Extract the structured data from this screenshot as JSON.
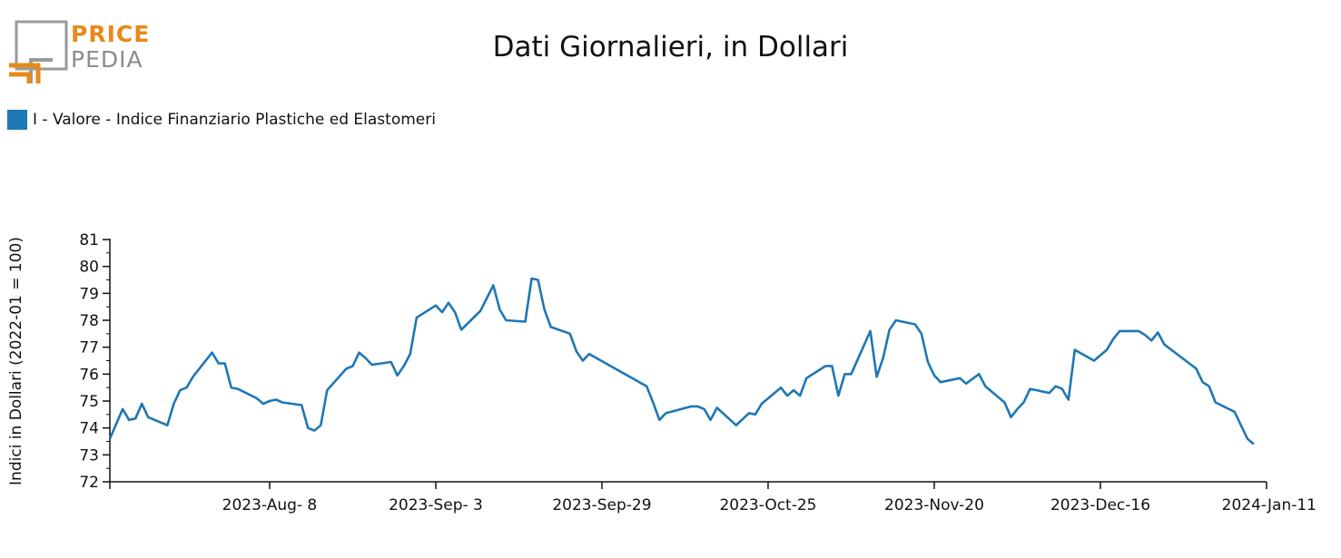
{
  "logo": {
    "word_top": "PRICE",
    "word_bottom": "PEDIA"
  },
  "colors": {
    "series": "#1f77b4",
    "logo_orange": "#e8891a",
    "logo_gray": "#8c8c8c"
  },
  "chart_data": {
    "type": "line",
    "title": "Dati Giornalieri, in Dollari",
    "ylabel": "Indici in Dollari (2022-01 = 100)",
    "xlabel": "",
    "legend_position": "top-left",
    "grid": false,
    "ylim": [
      72,
      81
    ],
    "xlim": [
      "2023-07-14",
      "2024-01-11"
    ],
    "y_ticks": [
      72,
      73,
      74,
      75,
      76,
      77,
      78,
      79,
      80,
      81
    ],
    "x_ticks": [
      {
        "date": "2023-08-08",
        "label": "2023-Aug- 8"
      },
      {
        "date": "2023-09-03",
        "label": "2023-Sep- 3"
      },
      {
        "date": "2023-09-29",
        "label": "2023-Sep-29"
      },
      {
        "date": "2023-10-25",
        "label": "2023-Oct-25"
      },
      {
        "date": "2023-11-20",
        "label": "2023-Nov-20"
      },
      {
        "date": "2023-12-16",
        "label": "2023-Dec-16"
      },
      {
        "date": "2024-01-11",
        "label": "2024-Jan-11"
      }
    ],
    "series": [
      {
        "name": "I - Valore - Indice Finanziario Plastiche ed Elastomeri",
        "color": "#1f77b4",
        "points": [
          [
            "2023-07-14",
            73.6
          ],
          [
            "2023-07-16",
            74.7
          ],
          [
            "2023-07-17",
            74.3
          ],
          [
            "2023-07-18",
            74.35
          ],
          [
            "2023-07-19",
            74.9
          ],
          [
            "2023-07-20",
            74.4
          ],
          [
            "2023-07-23",
            74.1
          ],
          [
            "2023-07-24",
            74.9
          ],
          [
            "2023-07-25",
            75.4
          ],
          [
            "2023-07-26",
            75.5
          ],
          [
            "2023-07-27",
            75.9
          ],
          [
            "2023-07-30",
            76.8
          ],
          [
            "2023-07-31",
            76.4
          ],
          [
            "2023-08-01",
            76.4
          ],
          [
            "2023-08-02",
            75.5
          ],
          [
            "2023-08-03",
            75.45
          ],
          [
            "2023-08-06",
            75.1
          ],
          [
            "2023-08-07",
            74.9
          ],
          [
            "2023-08-08",
            75.0
          ],
          [
            "2023-08-09",
            75.05
          ],
          [
            "2023-08-10",
            74.95
          ],
          [
            "2023-08-13",
            74.85
          ],
          [
            "2023-08-14",
            74.0
          ],
          [
            "2023-08-15",
            73.9
          ],
          [
            "2023-08-16",
            74.1
          ],
          [
            "2023-08-17",
            75.4
          ],
          [
            "2023-08-20",
            76.2
          ],
          [
            "2023-08-21",
            76.3
          ],
          [
            "2023-08-22",
            76.8
          ],
          [
            "2023-08-23",
            76.6
          ],
          [
            "2023-08-24",
            76.35
          ],
          [
            "2023-08-27",
            76.45
          ],
          [
            "2023-08-28",
            75.95
          ],
          [
            "2023-08-29",
            76.3
          ],
          [
            "2023-08-30",
            76.75
          ],
          [
            "2023-08-31",
            78.1
          ],
          [
            "2023-09-03",
            78.55
          ],
          [
            "2023-09-04",
            78.3
          ],
          [
            "2023-09-05",
            78.65
          ],
          [
            "2023-09-06",
            78.3
          ],
          [
            "2023-09-07",
            77.65
          ],
          [
            "2023-09-10",
            78.35
          ],
          [
            "2023-09-12",
            79.3
          ],
          [
            "2023-09-13",
            78.4
          ],
          [
            "2023-09-14",
            78.0
          ],
          [
            "2023-09-17",
            77.95
          ],
          [
            "2023-09-18",
            79.55
          ],
          [
            "2023-09-19",
            79.5
          ],
          [
            "2023-09-20",
            78.4
          ],
          [
            "2023-09-21",
            77.75
          ],
          [
            "2023-09-24",
            77.5
          ],
          [
            "2023-09-25",
            76.85
          ],
          [
            "2023-09-26",
            76.5
          ],
          [
            "2023-09-27",
            76.75
          ],
          [
            "2023-10-06",
            75.55
          ],
          [
            "2023-10-07",
            74.95
          ],
          [
            "2023-10-08",
            74.3
          ],
          [
            "2023-10-09",
            74.55
          ],
          [
            "2023-10-13",
            74.8
          ],
          [
            "2023-10-14",
            74.8
          ],
          [
            "2023-10-15",
            74.7
          ],
          [
            "2023-10-16",
            74.3
          ],
          [
            "2023-10-17",
            74.75
          ],
          [
            "2023-10-20",
            74.1
          ],
          [
            "2023-10-22",
            74.55
          ],
          [
            "2023-10-23",
            74.5
          ],
          [
            "2023-10-24",
            74.9
          ],
          [
            "2023-10-27",
            75.5
          ],
          [
            "2023-10-28",
            75.2
          ],
          [
            "2023-10-29",
            75.4
          ],
          [
            "2023-10-30",
            75.2
          ],
          [
            "2023-10-31",
            75.85
          ],
          [
            "2023-11-03",
            76.3
          ],
          [
            "2023-11-04",
            76.3
          ],
          [
            "2023-11-05",
            75.2
          ],
          [
            "2023-11-06",
            76.0
          ],
          [
            "2023-11-07",
            76.0
          ],
          [
            "2023-11-10",
            77.6
          ],
          [
            "2023-11-11",
            75.9
          ],
          [
            "2023-11-12",
            76.6
          ],
          [
            "2023-11-13",
            77.65
          ],
          [
            "2023-11-14",
            78.0
          ],
          [
            "2023-11-17",
            77.85
          ],
          [
            "2023-11-18",
            77.5
          ],
          [
            "2023-11-19",
            76.45
          ],
          [
            "2023-11-20",
            75.95
          ],
          [
            "2023-11-21",
            75.7
          ],
          [
            "2023-11-24",
            75.85
          ],
          [
            "2023-11-25",
            75.65
          ],
          [
            "2023-11-27",
            76.0
          ],
          [
            "2023-11-28",
            75.55
          ],
          [
            "2023-12-01",
            74.95
          ],
          [
            "2023-12-02",
            74.4
          ],
          [
            "2023-12-03",
            74.7
          ],
          [
            "2023-12-04",
            74.95
          ],
          [
            "2023-12-05",
            75.45
          ],
          [
            "2023-12-08",
            75.3
          ],
          [
            "2023-12-09",
            75.55
          ],
          [
            "2023-12-10",
            75.45
          ],
          [
            "2023-12-11",
            75.05
          ],
          [
            "2023-12-12",
            76.9
          ],
          [
            "2023-12-15",
            76.5
          ],
          [
            "2023-12-17",
            76.9
          ],
          [
            "2023-12-18",
            77.3
          ],
          [
            "2023-12-19",
            77.6
          ],
          [
            "2023-12-22",
            77.6
          ],
          [
            "2023-12-23",
            77.45
          ],
          [
            "2023-12-24",
            77.25
          ],
          [
            "2023-12-25",
            77.55
          ],
          [
            "2023-12-26",
            77.1
          ],
          [
            "2023-12-31",
            76.2
          ],
          [
            "2024-01-01",
            75.7
          ],
          [
            "2024-01-02",
            75.55
          ],
          [
            "2024-01-03",
            74.95
          ],
          [
            "2024-01-06",
            74.6
          ],
          [
            "2024-01-08",
            73.6
          ],
          [
            "2024-01-09",
            73.4
          ]
        ]
      }
    ]
  }
}
